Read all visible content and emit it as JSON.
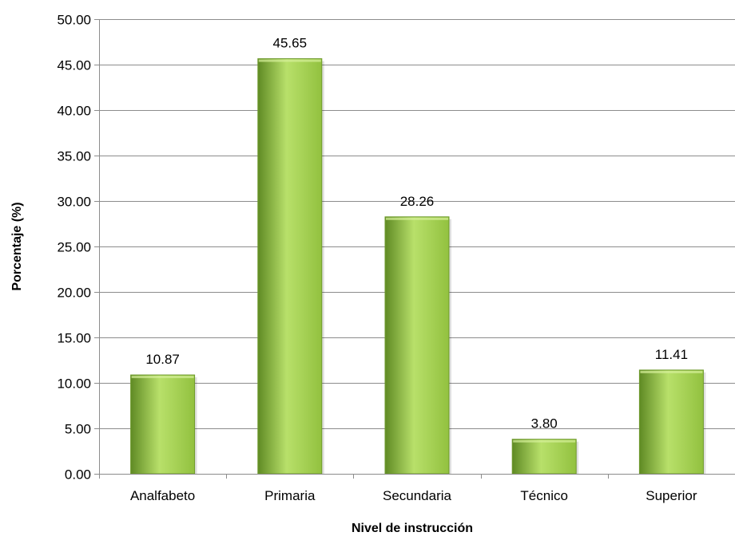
{
  "chart_data": {
    "type": "bar",
    "title": "",
    "xlabel": "Nivel de instrucción",
    "ylabel": "Porcentaje (%)",
    "categories": [
      "Analfabeto",
      "Primaria",
      "Secundaria",
      "Técnico",
      "Superior"
    ],
    "values": [
      10.87,
      45.65,
      28.26,
      3.8,
      11.41
    ],
    "data_labels": [
      "10.87",
      "45.65",
      "28.26",
      "3.80",
      "11.41"
    ],
    "ylim": [
      0,
      50
    ],
    "yticks": [
      "0.00",
      "5.00",
      "10.00",
      "15.00",
      "20.00",
      "25.00",
      "30.00",
      "35.00",
      "40.00",
      "45.00",
      "50.00"
    ],
    "grid": true,
    "legend": "none",
    "colors": {
      "bar_light": "#b8e06a",
      "bar_mid": "#92c13f",
      "bar_dark": "#5f8a24",
      "bar_edge": "#6e9a2c",
      "gridline": "#8c8c8c"
    }
  }
}
